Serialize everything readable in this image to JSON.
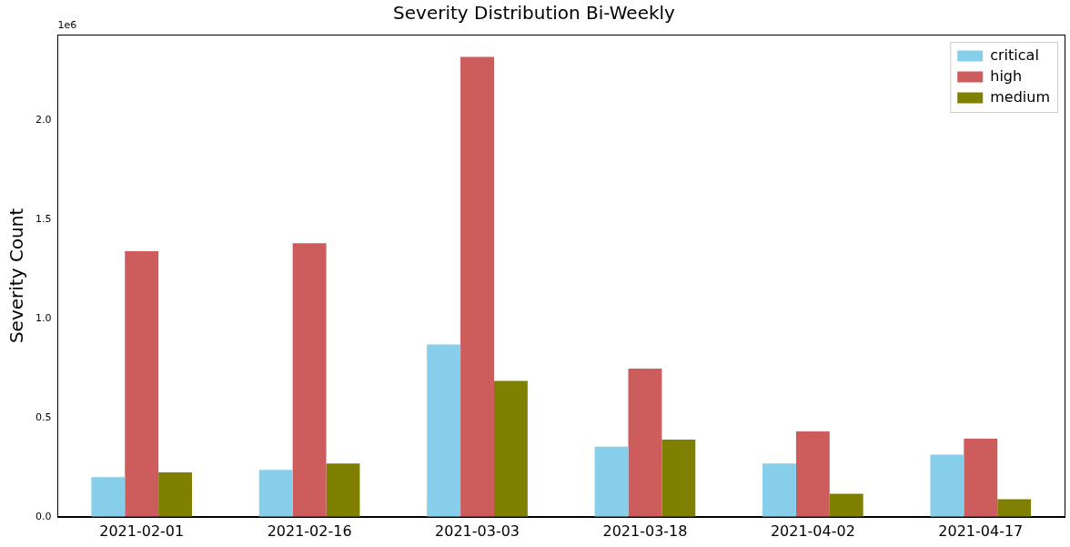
{
  "chart_data": {
    "type": "bar",
    "title": "Severity Distribution Bi-Weekly",
    "y_label": "Severity Count",
    "annotations": [
      "1e6"
    ],
    "categories": [
      "2021-02-01",
      "2021-02-16",
      "2021-03-03",
      "2021-03-18",
      "2021-04-02",
      "2021-04-17"
    ],
    "series": [
      {
        "name": "critical",
        "color": "#87ceeb",
        "values": [
          0.2,
          0.237,
          0.868,
          0.353,
          0.268,
          0.313
        ]
      },
      {
        "name": "high",
        "color": "#cd5c5c",
        "values": [
          1.338,
          1.378,
          2.318,
          0.747,
          0.43,
          0.394
        ]
      },
      {
        "name": "medium",
        "color": "#808000",
        "values": [
          0.224,
          0.268,
          0.685,
          0.389,
          0.116,
          0.089
        ]
      }
    ],
    "ylim": [
      0,
      2.43
    ],
    "yticks": [
      {
        "value": 0,
        "label": "0.0"
      },
      0.5,
      {
        "value": 1,
        "label": "1.0"
      },
      1.5,
      {
        "value": 2,
        "label": "2.0"
      }
    ],
    "grid": false,
    "legend": "upper right"
  }
}
